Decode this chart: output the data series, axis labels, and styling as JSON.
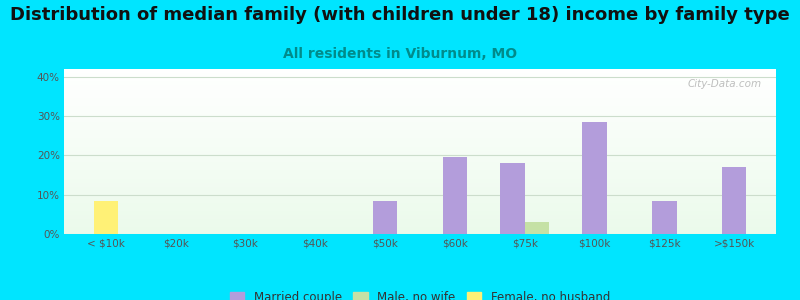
{
  "title": "Distribution of median family (with children under 18) income by family type",
  "subtitle": "All residents in Viburnum, MO",
  "categories": [
    "< $10k",
    "$20k",
    "$30k",
    "$40k",
    "$50k",
    "$60k",
    "$75k",
    "$100k",
    "$125k",
    ">$150k"
  ],
  "married_couple": [
    0,
    0,
    0,
    0,
    8.5,
    19.5,
    18.0,
    28.5,
    8.5,
    17.0
  ],
  "male_no_wife": [
    0,
    0,
    0,
    0,
    0,
    0,
    3.0,
    0,
    0,
    0
  ],
  "female_no_husband": [
    8.5,
    0,
    0,
    0,
    0,
    0,
    0,
    0,
    0,
    0
  ],
  "married_color": "#b39ddb",
  "male_color": "#c5e1a5",
  "female_color": "#fff176",
  "bg_outer": "#00e5ff",
  "ylim": [
    0,
    42
  ],
  "yticks": [
    0,
    10,
    20,
    30,
    40
  ],
  "ytick_labels": [
    "0%",
    "10%",
    "20%",
    "30%",
    "40%"
  ],
  "title_fontsize": 13,
  "subtitle_fontsize": 10,
  "watermark": "City-Data.com",
  "bar_width": 0.35,
  "grid_color": "#ccddcc",
  "tick_color": "#555555",
  "subtitle_color": "#008b8b",
  "title_color": "#111111"
}
